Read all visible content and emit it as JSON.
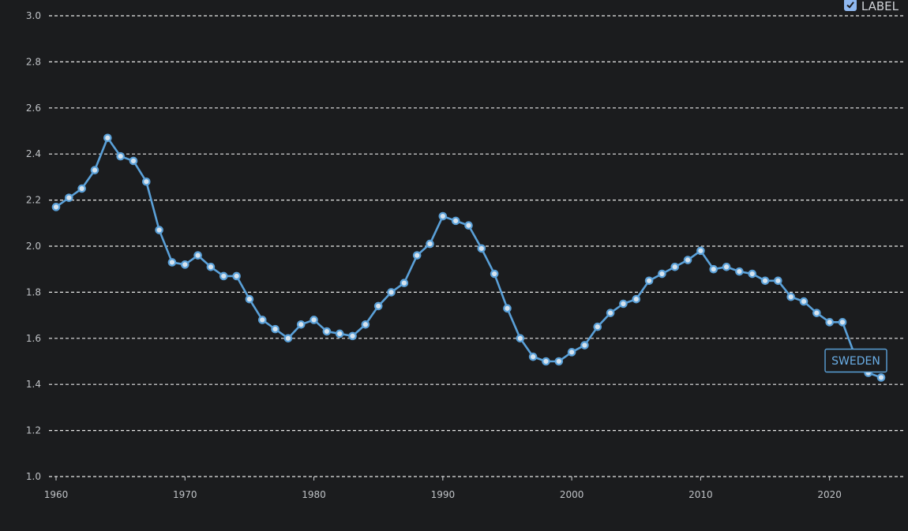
{
  "toggle": {
    "label": "LABEL",
    "checked": true
  },
  "colors": {
    "background": "#1b1c1e",
    "grid": "#e8e8e8",
    "line": "#5aa0d8",
    "marker_fill": "#d6e3ee",
    "marker_stroke": "#5aa0d8",
    "tick_text": "#bfc2c6",
    "tag_border": "#5aa0d8",
    "tag_text": "#6aaee6"
  },
  "chart_data": {
    "type": "line",
    "title": "",
    "xlabel": "",
    "ylabel": "",
    "xlim": [
      1960,
      2024
    ],
    "ylim": [
      1.0,
      3.0
    ],
    "x_ticks": [
      "1960",
      "1970",
      "1980",
      "1990",
      "2000",
      "2010",
      "2020"
    ],
    "y_ticks": [
      "1.0",
      "1.2",
      "1.4",
      "1.6",
      "1.8",
      "2.0",
      "2.2",
      "2.4",
      "2.6",
      "2.8",
      "3.0"
    ],
    "grid": true,
    "grid_style": "dashed-horizontal",
    "series": [
      {
        "name": "SWEDEN",
        "x": [
          1960,
          1961,
          1962,
          1963,
          1964,
          1965,
          1966,
          1967,
          1968,
          1969,
          1970,
          1971,
          1972,
          1973,
          1974,
          1975,
          1976,
          1977,
          1978,
          1979,
          1980,
          1981,
          1982,
          1983,
          1984,
          1985,
          1986,
          1987,
          1988,
          1989,
          1990,
          1991,
          1992,
          1993,
          1994,
          1995,
          1996,
          1997,
          1998,
          1999,
          2000,
          2001,
          2002,
          2003,
          2004,
          2005,
          2006,
          2007,
          2008,
          2009,
          2010,
          2011,
          2012,
          2013,
          2014,
          2015,
          2016,
          2017,
          2018,
          2019,
          2020,
          2021,
          2022,
          2023,
          2024
        ],
        "values": [
          2.17,
          2.21,
          2.25,
          2.33,
          2.47,
          2.39,
          2.37,
          2.28,
          2.07,
          1.93,
          1.92,
          1.96,
          1.91,
          1.87,
          1.87,
          1.77,
          1.68,
          1.64,
          1.6,
          1.66,
          1.68,
          1.63,
          1.62,
          1.61,
          1.66,
          1.74,
          1.8,
          1.84,
          1.96,
          2.01,
          2.13,
          2.11,
          2.09,
          1.99,
          1.88,
          1.73,
          1.6,
          1.52,
          1.5,
          1.5,
          1.54,
          1.57,
          1.65,
          1.71,
          1.75,
          1.77,
          1.85,
          1.88,
          1.91,
          1.94,
          1.98,
          1.9,
          1.91,
          1.89,
          1.88,
          1.85,
          1.85,
          1.78,
          1.76,
          1.71,
          1.67,
          1.67,
          1.52,
          1.45,
          1.43
        ]
      }
    ]
  }
}
